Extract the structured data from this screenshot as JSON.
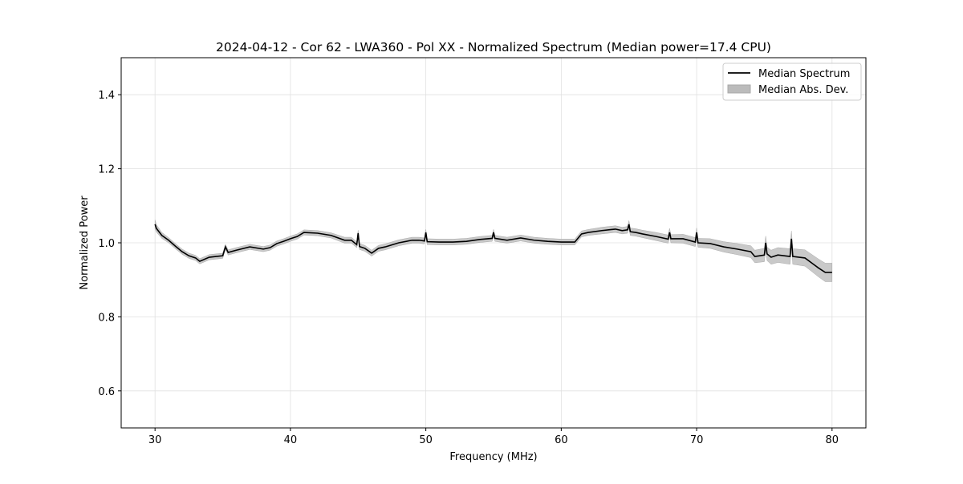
{
  "chart_data": {
    "type": "line",
    "title": "2024-04-12 - Cor 62 - LWA360 - Pol XX - Normalized Spectrum (Median power=17.4 CPU)",
    "xlabel": "Frequency (MHz)",
    "ylabel": "Normalized Power",
    "xlim": [
      27.5,
      82.5
    ],
    "ylim": [
      0.5,
      1.5
    ],
    "xticks": [
      30,
      40,
      50,
      60,
      70,
      80
    ],
    "yticks": [
      0.6,
      0.8,
      1.0,
      1.2,
      1.4
    ],
    "xtick_labels": [
      "30",
      "40",
      "50",
      "60",
      "70",
      "80"
    ],
    "ytick_labels": [
      "0.6",
      "0.8",
      "1.0",
      "1.2",
      "1.4"
    ],
    "grid": true,
    "legend_position": "top-right",
    "legend": [
      "Median Spectrum",
      "Median Abs. Dev."
    ],
    "colors": {
      "line": "#000000",
      "band": "#bbbbbb",
      "grid": "#e0e0e0"
    },
    "series": [
      {
        "name": "Median Spectrum",
        "x": [
          30,
          30.1,
          30.5,
          31,
          31.5,
          32,
          32.5,
          33,
          33.3,
          34,
          34.5,
          35,
          35.2,
          35.4,
          36,
          37,
          38,
          38.5,
          39,
          39.5,
          40,
          40.5,
          41,
          42,
          43,
          44,
          44.5,
          44.9,
          45,
          45.1,
          45.5,
          46,
          46.5,
          47,
          48,
          49,
          49.5,
          49.9,
          50,
          50.1,
          51,
          52,
          53,
          54,
          54.9,
          55,
          55.1,
          56,
          57,
          58,
          59,
          60,
          61,
          61.5,
          62,
          63,
          64,
          64.5,
          64.9,
          65,
          65.1,
          65.5,
          66,
          67,
          67.9,
          68,
          68.1,
          69,
          69.9,
          70,
          70.1,
          71,
          72,
          73,
          74,
          74.3,
          75,
          75.1,
          75.2,
          75.5,
          76,
          76.9,
          77,
          77.1,
          78,
          79,
          79.5,
          80
        ],
        "y": [
          1.05,
          1.039,
          1.02,
          1.007,
          0.991,
          0.976,
          0.965,
          0.959,
          0.95,
          0.961,
          0.963,
          0.965,
          0.989,
          0.974,
          0.98,
          0.989,
          0.983,
          0.987,
          0.998,
          1.004,
          1.011,
          1.017,
          1.028,
          1.026,
          1.02,
          1.007,
          1.007,
          0.995,
          1.026,
          0.99,
          0.985,
          0.972,
          0.985,
          0.989,
          1.0,
          1.007,
          1.007,
          1.005,
          1.028,
          1.003,
          1.002,
          1.002,
          1.004,
          1.009,
          1.012,
          1.028,
          1.012,
          1.007,
          1.013,
          1.007,
          1.004,
          1.002,
          1.002,
          1.024,
          1.028,
          1.033,
          1.037,
          1.033,
          1.035,
          1.05,
          1.03,
          1.028,
          1.024,
          1.017,
          1.01,
          1.028,
          1.011,
          1.011,
          1.002,
          1.028,
          1.0,
          0.998,
          0.989,
          0.983,
          0.976,
          0.963,
          0.967,
          1.0,
          0.97,
          0.961,
          0.967,
          0.963,
          1.011,
          0.963,
          0.959,
          0.932,
          0.92,
          0.92
        ]
      },
      {
        "name": "Median Abs. Dev.",
        "type": "band",
        "mad": [
          0.012,
          0.01,
          0.008,
          0.007,
          0.007,
          0.007,
          0.007,
          0.007,
          0.007,
          0.007,
          0.007,
          0.007,
          0.007,
          0.007,
          0.007,
          0.007,
          0.007,
          0.007,
          0.007,
          0.007,
          0.007,
          0.007,
          0.007,
          0.007,
          0.007,
          0.008,
          0.008,
          0.008,
          0.008,
          0.008,
          0.008,
          0.008,
          0.008,
          0.008,
          0.008,
          0.008,
          0.008,
          0.008,
          0.008,
          0.008,
          0.008,
          0.008,
          0.008,
          0.008,
          0.008,
          0.008,
          0.008,
          0.008,
          0.008,
          0.008,
          0.008,
          0.008,
          0.008,
          0.008,
          0.008,
          0.009,
          0.009,
          0.009,
          0.009,
          0.01,
          0.01,
          0.01,
          0.01,
          0.011,
          0.011,
          0.011,
          0.011,
          0.012,
          0.012,
          0.012,
          0.012,
          0.013,
          0.014,
          0.015,
          0.016,
          0.017,
          0.018,
          0.018,
          0.018,
          0.019,
          0.02,
          0.021,
          0.021,
          0.021,
          0.022,
          0.024,
          0.025,
          0.025
        ]
      }
    ]
  }
}
